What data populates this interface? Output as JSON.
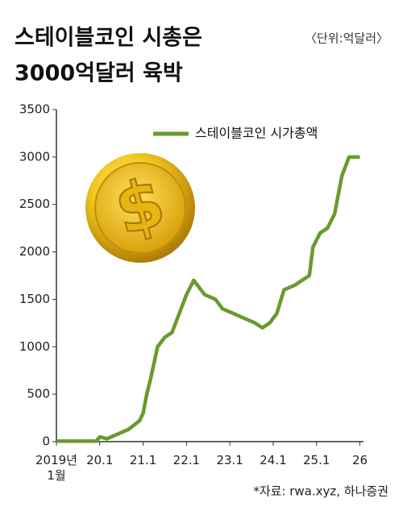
{
  "title_lines": [
    "스테이블코인 시총은",
    "3000억달러 육박"
  ],
  "unit": "〈단위:억달러〉",
  "source": "*자료: rwa.xyz, 하나증권",
  "chart_data": {
    "type": "line",
    "color": "#6a9a2e",
    "legend": "top-center",
    "x": [
      "2019-01",
      "2019-06",
      "2019-12",
      "2020-01",
      "2020-03",
      "2020-06",
      "2020-09",
      "2020-12",
      "2021-01",
      "2021-02",
      "2021-03",
      "2021-05",
      "2021-07",
      "2021-09",
      "2021-10",
      "2021-12",
      "2022-01",
      "2022-03",
      "2022-05",
      "2022-06",
      "2022-09",
      "2022-11",
      "2023-02",
      "2023-05",
      "2023-08",
      "2023-10",
      "2023-12",
      "2024-02",
      "2024-04",
      "2024-07",
      "2024-09",
      "2024-11",
      "2024-12",
      "2025-02",
      "2025-04",
      "2025-06",
      "2025-08",
      "2025-10",
      "2025-12",
      "2026-01"
    ],
    "series": [
      {
        "name": "스테이블코인 시가총액",
        "color": "#6a9a2e",
        "values": [
          5,
          5,
          5,
          50,
          30,
          80,
          130,
          220,
          300,
          500,
          650,
          1000,
          1100,
          1150,
          1250,
          1450,
          1550,
          1700,
          1600,
          1550,
          1500,
          1400,
          1350,
          1300,
          1250,
          1200,
          1250,
          1350,
          1600,
          1650,
          1700,
          1750,
          2050,
          2200,
          2250,
          2400,
          2800,
          3000,
          3000,
          3000
        ]
      }
    ],
    "xlim": [
      "2019-01",
      "2026-02"
    ],
    "xticks": [
      {
        "value": "2019-01",
        "label": "2019년\n1월"
      },
      {
        "value": "2020-01",
        "label": "20.1"
      },
      {
        "value": "2021-01",
        "label": "21.1"
      },
      {
        "value": "2022-01",
        "label": "22.1"
      },
      {
        "value": "2023-01",
        "label": "23.1"
      },
      {
        "value": "2024-01",
        "label": "24.1"
      },
      {
        "value": "2025-01",
        "label": "25.1"
      },
      {
        "value": "2026-01",
        "label": "26"
      }
    ],
    "ylim": [
      0,
      3500
    ],
    "yticks": [
      0,
      500,
      1000,
      1500,
      2000,
      2500,
      3000,
      3500
    ]
  }
}
